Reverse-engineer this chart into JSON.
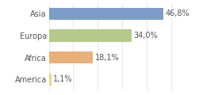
{
  "categories": [
    "Asia",
    "Europa",
    "Africa",
    "America"
  ],
  "values": [
    46.8,
    34.0,
    18.1,
    1.1
  ],
  "labels": [
    "46,8%",
    "34,0%",
    "18,1%",
    "1,1%"
  ],
  "bar_colors": [
    "#7b9dc7",
    "#b5c98a",
    "#e8b07a",
    "#e8d87a"
  ],
  "background_color": "#ffffff",
  "xlim": [
    0,
    60
  ],
  "bar_height": 0.55,
  "label_fontsize": 7,
  "tick_fontsize": 7,
  "grid_color": "#dddddd",
  "text_color": "#555555"
}
